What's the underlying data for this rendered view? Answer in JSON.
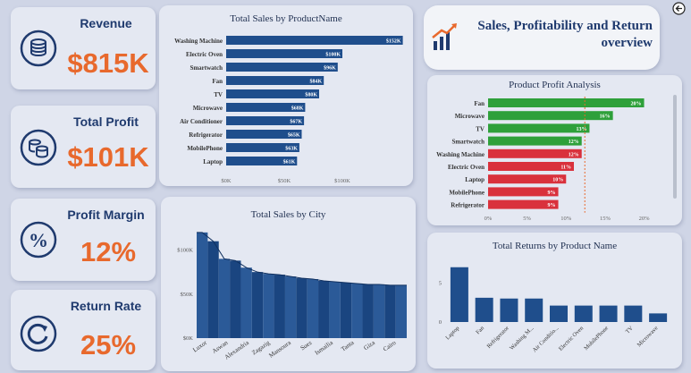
{
  "kpis": {
    "revenue": {
      "label": "Revenue",
      "value": "$815K"
    },
    "profit": {
      "label": "Total Profit",
      "value": "$101K"
    },
    "margin": {
      "label": "Profit Margin",
      "value": "12%"
    },
    "returns": {
      "label": "Return Rate",
      "value": "25%"
    }
  },
  "header": {
    "title_line1": "Sales, Profitability and Return",
    "title_line2": "overview"
  },
  "colors": {
    "bar_blue": "#1f4e8c",
    "profit_green": "#2ea03a",
    "profit_red": "#d9313c",
    "kpi_orange": "#e8692d",
    "title_navy": "#1f3a6e"
  },
  "icons": [
    "coins-icon",
    "money-stack-icon",
    "percent-icon",
    "return-arrow-icon",
    "growth-chart-icon",
    "back-arrow-icon"
  ],
  "chart_data": [
    {
      "id": "sales_by_product",
      "type": "bar",
      "orientation": "horizontal",
      "title": "Total Sales by ProductName",
      "categories": [
        "Washing Machine",
        "Electric Oven",
        "Smartwatch",
        "Fan",
        "TV",
        "Microwave",
        "Air Conditioner",
        "Refrigerator",
        "MobilePhone",
        "Laptop"
      ],
      "values": [
        152,
        100,
        96,
        84,
        80,
        68,
        67,
        65,
        63,
        61
      ],
      "value_labels": [
        "$152K",
        "$100K",
        "$96K",
        "$84K",
        "$80K",
        "$68K",
        "$67K",
        "$65K",
        "$63K",
        "$61K"
      ],
      "xlim": [
        0,
        150
      ],
      "x_ticks": [
        0,
        50,
        100
      ],
      "x_tick_labels": [
        "$0K",
        "$50K",
        "$100K"
      ]
    },
    {
      "id": "profit_by_product",
      "type": "bar",
      "orientation": "horizontal",
      "title": "Product Profit Analysis",
      "categories": [
        "Fan",
        "Microwave",
        "TV",
        "Smartwatch",
        "Washing Machine",
        "Electric Oven",
        "Laptop",
        "MobilePhone",
        "Refrigerator"
      ],
      "values": [
        20,
        16,
        13,
        12,
        12,
        11,
        10,
        9,
        9
      ],
      "value_labels": [
        "20%",
        "16%",
        "13%",
        "12%",
        "12%",
        "11%",
        "10%",
        "9%",
        "9%"
      ],
      "bar_colors": [
        "green",
        "green",
        "green",
        "green",
        "red",
        "red",
        "red",
        "red",
        "red"
      ],
      "average_line": 12.4,
      "xlim": [
        0,
        22
      ],
      "x_ticks": [
        0,
        5,
        10,
        15,
        20
      ],
      "x_tick_labels": [
        "0%",
        "5%",
        "10%",
        "15%",
        "20%"
      ]
    },
    {
      "id": "sales_by_city",
      "type": "area",
      "title": "Total Sales by City",
      "labeled_cities": [
        "Luxor",
        "Aswan",
        "Alexandria",
        "Zagazig",
        "Mansoura",
        "Suez",
        "Ismailia",
        "Tanta",
        "Giza",
        "Cairo"
      ],
      "values": [
        120,
        110,
        90,
        88,
        80,
        75,
        73,
        72,
        70,
        68,
        67,
        65,
        64,
        63,
        62,
        61,
        61,
        60,
        60
      ],
      "ylim": [
        0,
        130
      ],
      "y_ticks": [
        0,
        50,
        100
      ],
      "y_tick_labels": [
        "$0K",
        "$50K",
        "$100K"
      ]
    },
    {
      "id": "returns_by_product",
      "type": "bar",
      "title": "Total Returns by Product Name",
      "categories": [
        "Laptop",
        "Fan",
        "Refrigerator",
        "Washing M...",
        "Air Conditio...",
        "Electric Oven",
        "MobilePhone",
        "TV",
        "Microwave"
      ],
      "values": [
        7,
        3.1,
        3,
        3,
        2.1,
        2.1,
        2.1,
        2.1,
        1.1
      ],
      "ylim": [
        0,
        8
      ],
      "y_ticks": [
        0,
        5
      ],
      "y_tick_labels": [
        "0",
        "5"
      ]
    }
  ]
}
